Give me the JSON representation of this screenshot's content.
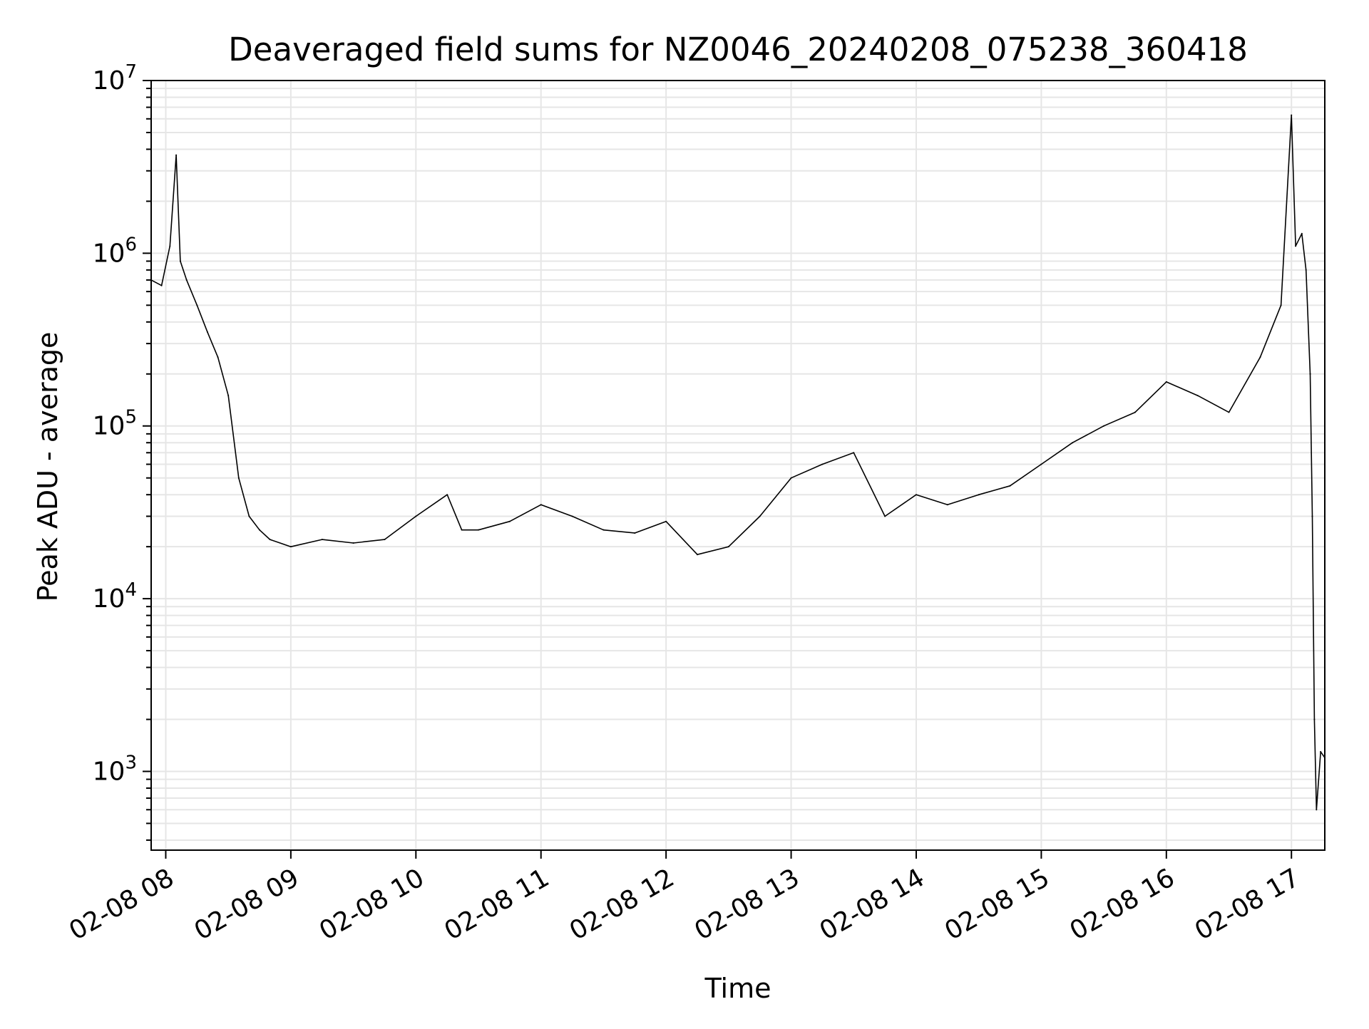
{
  "chart_data": {
    "type": "line",
    "title": "Deaveraged field sums for NZ0046_20240208_075238_360418",
    "xlabel": "Time",
    "ylabel": "Peak ADU - average",
    "y_scale": "log",
    "ylim": [
      350,
      10000000
    ],
    "xlim": [
      "02-08 07:53",
      "02-08 17:16"
    ],
    "grid": true,
    "line_color": "#000000",
    "grid_color": "#e6e6e6",
    "x_ticks": [
      {
        "t": "02-08 08:00",
        "label": "02-08 08"
      },
      {
        "t": "02-08 09:00",
        "label": "02-08 09"
      },
      {
        "t": "02-08 10:00",
        "label": "02-08 10"
      },
      {
        "t": "02-08 11:00",
        "label": "02-08 11"
      },
      {
        "t": "02-08 12:00",
        "label": "02-08 12"
      },
      {
        "t": "02-08 13:00",
        "label": "02-08 13"
      },
      {
        "t": "02-08 14:00",
        "label": "02-08 14"
      },
      {
        "t": "02-08 15:00",
        "label": "02-08 15"
      },
      {
        "t": "02-08 16:00",
        "label": "02-08 16"
      },
      {
        "t": "02-08 17:00",
        "label": "02-08 17"
      }
    ],
    "y_ticks": [
      {
        "value": 1000,
        "base": "10",
        "exp": "3"
      },
      {
        "value": 10000,
        "base": "10",
        "exp": "4"
      },
      {
        "value": 100000,
        "base": "10",
        "exp": "5"
      },
      {
        "value": 1000000,
        "base": "10",
        "exp": "6"
      },
      {
        "value": 10000000,
        "base": "10",
        "exp": "7"
      }
    ],
    "series": [
      {
        "name": "",
        "x": [
          "02-08 07:53",
          "02-08 07:58",
          "02-08 08:02",
          "02-08 08:05",
          "02-08 08:07",
          "02-08 08:10",
          "02-08 08:15",
          "02-08 08:20",
          "02-08 08:25",
          "02-08 08:30",
          "02-08 08:35",
          "02-08 08:40",
          "02-08 08:45",
          "02-08 08:50",
          "02-08 09:00",
          "02-08 09:15",
          "02-08 09:30",
          "02-08 09:45",
          "02-08 10:00",
          "02-08 10:15",
          "02-08 10:22",
          "02-08 10:30",
          "02-08 10:45",
          "02-08 11:00",
          "02-08 11:15",
          "02-08 11:30",
          "02-08 11:45",
          "02-08 12:00",
          "02-08 12:15",
          "02-08 12:30",
          "02-08 12:45",
          "02-08 13:00",
          "02-08 13:15",
          "02-08 13:30",
          "02-08 13:45",
          "02-08 14:00",
          "02-08 14:15",
          "02-08 14:30",
          "02-08 14:45",
          "02-08 15:00",
          "02-08 15:15",
          "02-08 15:30",
          "02-08 15:45",
          "02-08 16:00",
          "02-08 16:15",
          "02-08 16:30",
          "02-08 16:45",
          "02-08 16:55",
          "02-08 17:00",
          "02-08 17:02",
          "02-08 17:05",
          "02-08 17:07",
          "02-08 17:09",
          "02-08 17:10",
          "02-08 17:11",
          "02-08 17:12",
          "02-08 17:14",
          "02-08 17:16"
        ],
        "y": [
          700000,
          650000,
          1100000,
          3700000,
          900000,
          700000,
          500000,
          350000,
          250000,
          150000,
          50000,
          30000,
          25000,
          22000,
          20000,
          22000,
          21000,
          22000,
          30000,
          40000,
          25000,
          25000,
          28000,
          35000,
          30000,
          25000,
          24000,
          28000,
          18000,
          20000,
          30000,
          50000,
          60000,
          70000,
          30000,
          40000,
          35000,
          40000,
          45000,
          60000,
          80000,
          100000,
          120000,
          180000,
          150000,
          120000,
          250000,
          500000,
          6300000,
          1100000,
          1300000,
          800000,
          200000,
          30000,
          2000,
          600,
          1300,
          1200
        ]
      }
    ]
  }
}
